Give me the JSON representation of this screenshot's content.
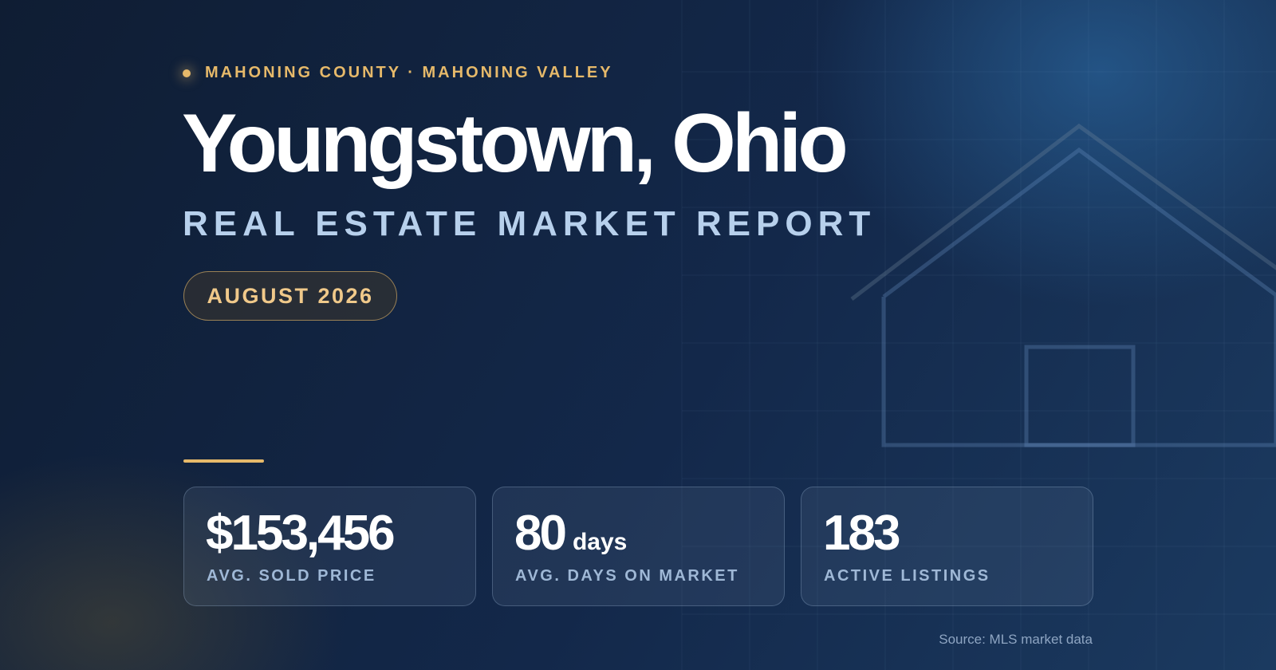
{
  "header": {
    "eyebrow": "MAHONING COUNTY · MAHONING VALLEY",
    "title": "Youngstown, Ohio",
    "subtitle": "REAL ESTATE MARKET REPORT",
    "badge": "AUGUST 2026"
  },
  "stats": [
    {
      "value": "$153,456",
      "label": "AVG. SOLD PRICE"
    },
    {
      "value": "80",
      "unit": "days",
      "label": "AVG. DAYS ON MARKET"
    },
    {
      "value": "183",
      "label": "ACTIVE LISTINGS"
    }
  ],
  "footer": {
    "source": "Source: MLS market data"
  }
}
